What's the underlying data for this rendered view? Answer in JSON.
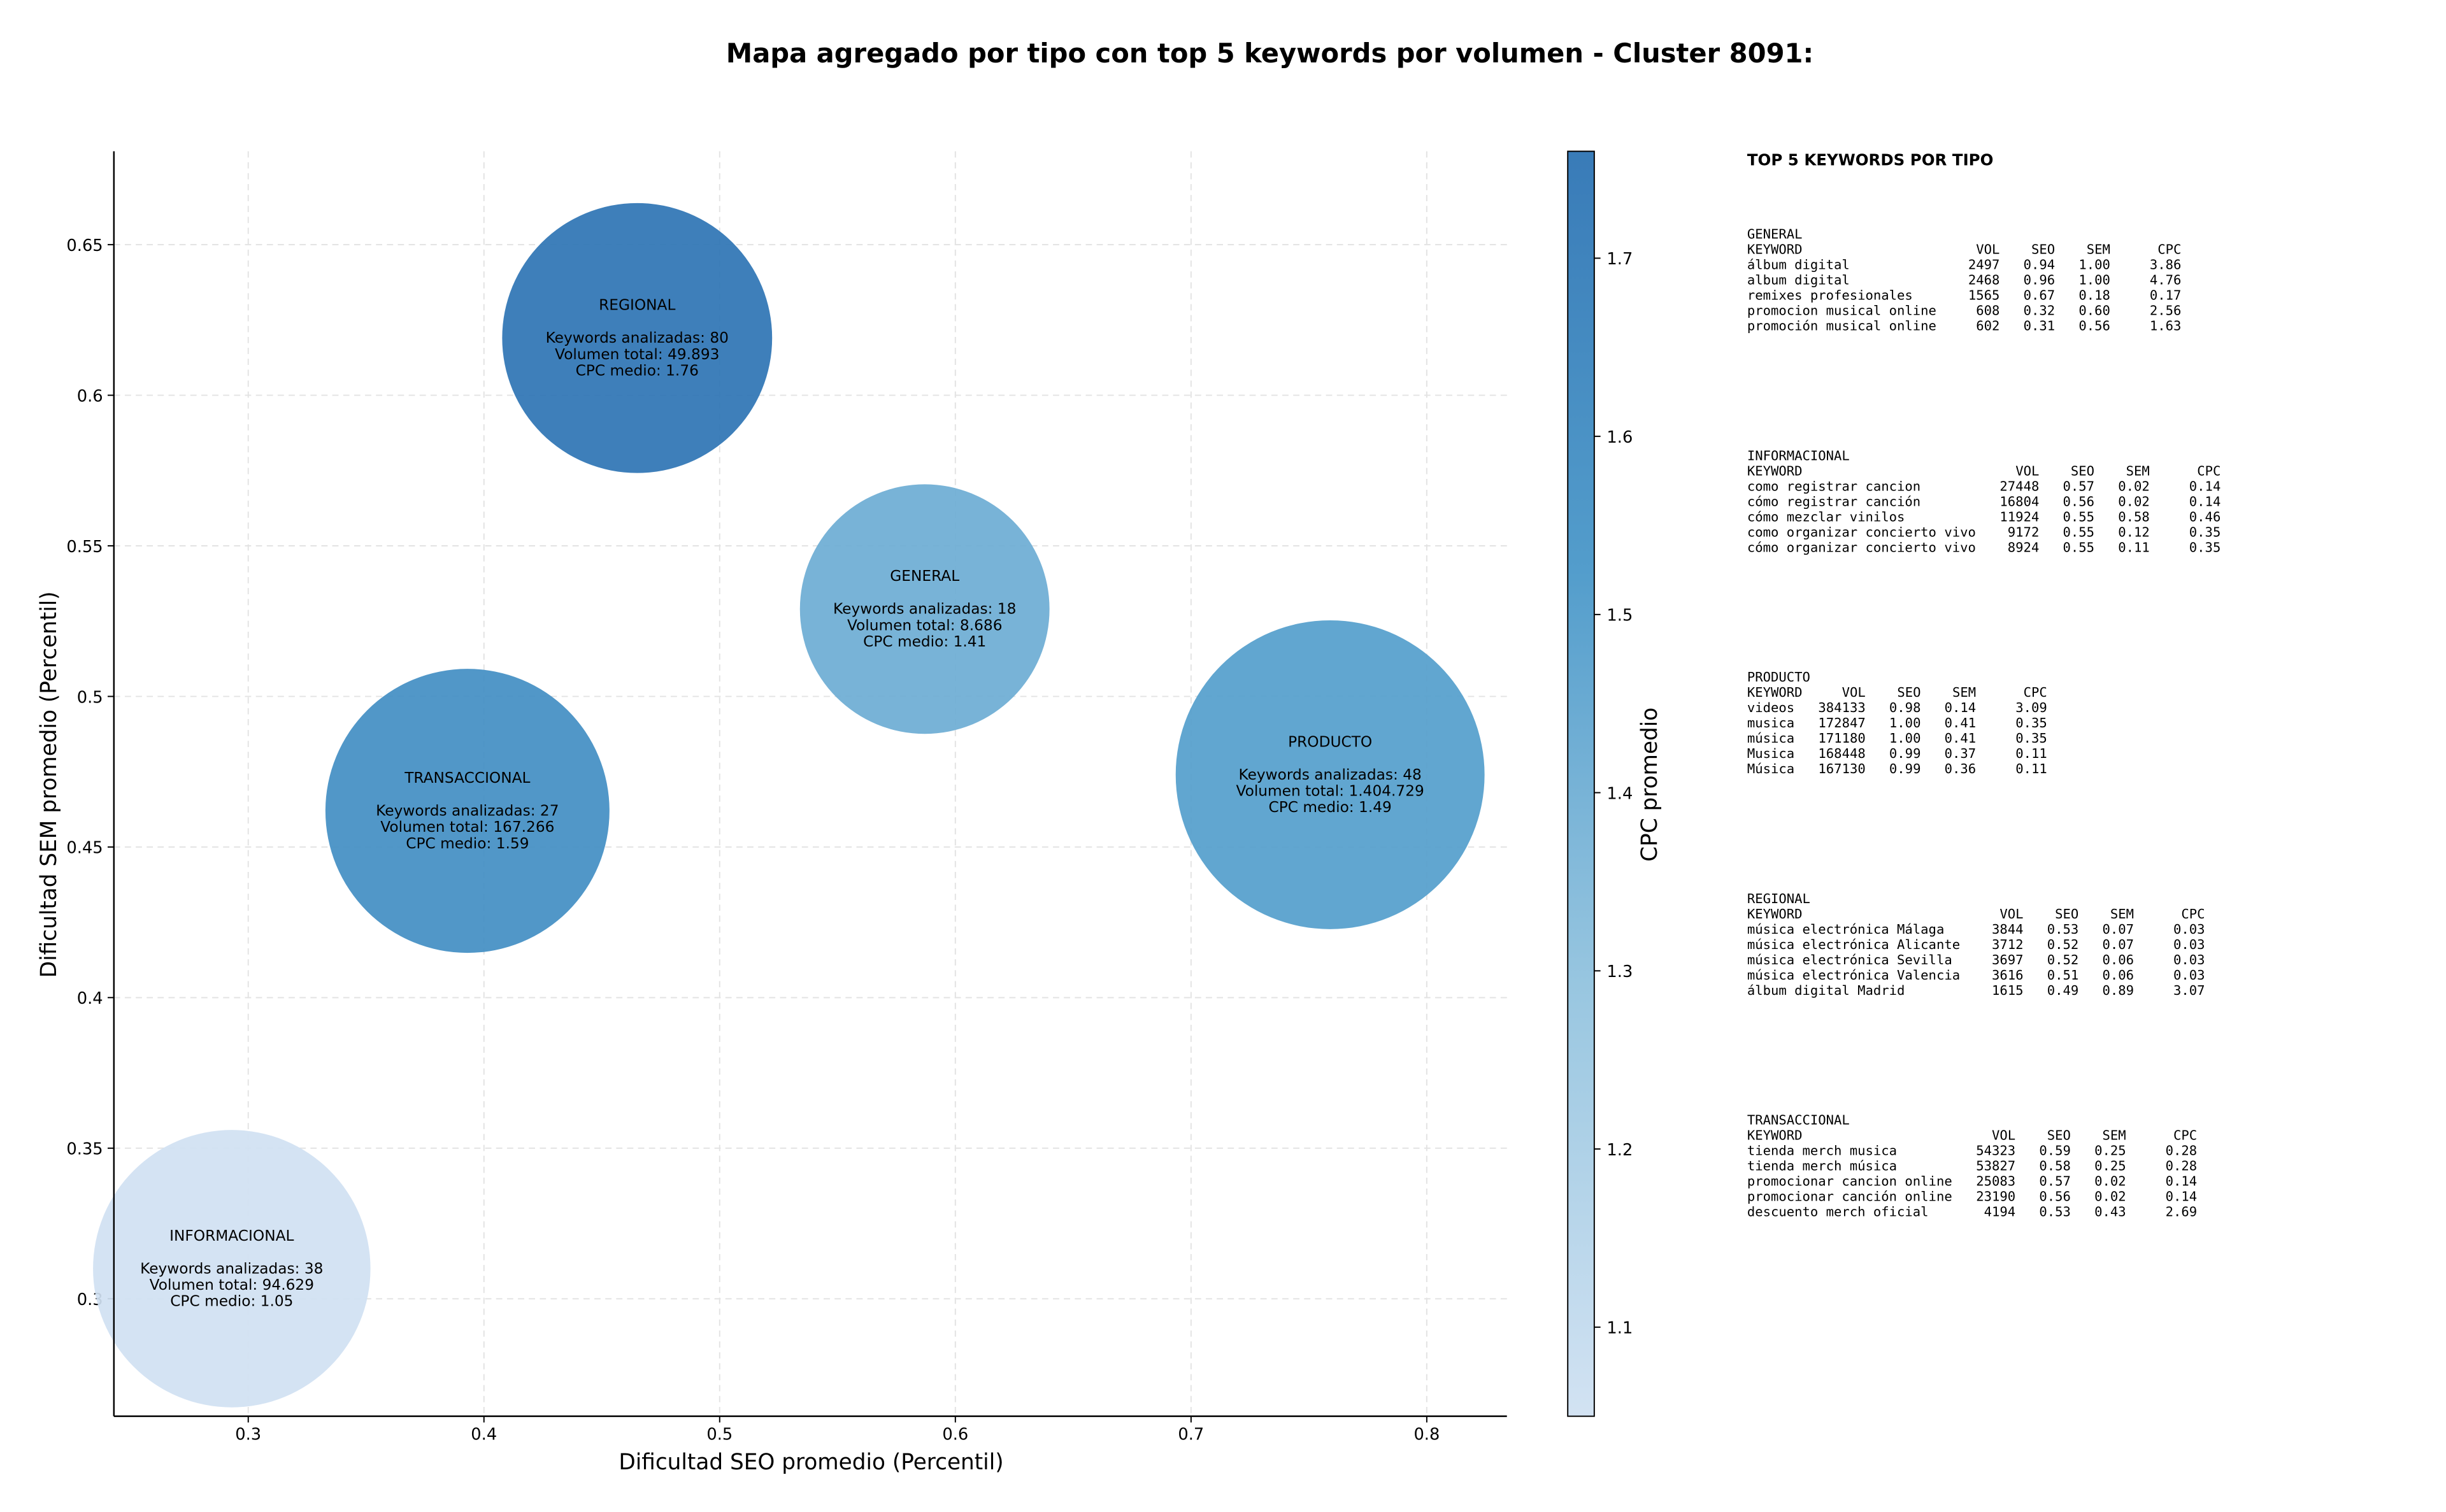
{
  "chart_data": {
    "type": "bubble",
    "title": "Mapa agregado por tipo con top 5 keywords por volumen - Cluster 8091:",
    "x_label": "Dificultad SEO promedio (Percentil)",
    "y_label": "Dificultad SEM promedio (Percentil)",
    "colorbar_label": "CPC promedio",
    "colormap": [
      "#d0e1f2",
      "#94c4df",
      "#4a98c9",
      "#2e74b4"
    ],
    "xlim": [
      0.243,
      0.834
    ],
    "xticks": [
      0.3,
      0.4,
      0.5,
      0.6,
      0.7,
      0.8
    ],
    "ylim": [
      0.261,
      0.681
    ],
    "yticks": [
      0.3,
      0.35,
      0.4,
      0.45,
      0.5,
      0.55,
      0.6,
      0.65
    ],
    "clim": [
      1.05,
      1.76
    ],
    "cticks": [
      1.1,
      1.2,
      1.3,
      1.4,
      1.5,
      1.6,
      1.7
    ],
    "grid": true,
    "points": [
      {
        "name": "REGIONAL",
        "x": 0.465,
        "y": 0.619,
        "volume": 49893,
        "cpc": 1.76,
        "labels": [
          "Keywords analizadas: 80",
          "Volumen total: 49.893",
          "CPC medio: 1.76"
        ]
      },
      {
        "name": "GENERAL",
        "x": 0.587,
        "y": 0.529,
        "volume": 8686,
        "cpc": 1.41,
        "labels": [
          "Keywords analizadas: 18",
          "Volumen total: 8.686",
          "CPC medio: 1.41"
        ]
      },
      {
        "name": "PRODUCTO",
        "x": 0.759,
        "y": 0.474,
        "volume": 1404729,
        "cpc": 1.49,
        "labels": [
          "Keywords analizadas: 48",
          "Volumen total: 1.404.729",
          "CPC medio: 1.49"
        ]
      },
      {
        "name": "TRANSACCIONAL",
        "x": 0.393,
        "y": 0.462,
        "volume": 167266,
        "cpc": 1.59,
        "labels": [
          "Keywords analizadas: 27",
          "Volumen total: 167.266",
          "CPC medio: 1.59"
        ]
      },
      {
        "name": "INFORMACIONAL",
        "x": 0.293,
        "y": 0.31,
        "volume": 94629,
        "cpc": 1.05,
        "labels": [
          "Keywords analizadas: 38",
          "Volumen total: 94.629",
          "CPC medio: 1.05"
        ]
      }
    ]
  },
  "panel": {
    "title": "TOP 5 KEYWORDS POR TIPO",
    "header": [
      "KEYWORD",
      "VOL",
      "SEO",
      "SEM",
      "CPC"
    ],
    "sections": [
      {
        "name": "GENERAL",
        "rows": [
          [
            "álbum digital",
            "2497",
            "0.94",
            "1.00",
            "3.86"
          ],
          [
            "album digital",
            "2468",
            "0.96",
            "1.00",
            "4.76"
          ],
          [
            "remixes profesionales",
            "1565",
            "0.67",
            "0.18",
            "0.17"
          ],
          [
            "promocion musical online",
            "608",
            "0.32",
            "0.60",
            "2.56"
          ],
          [
            "promoción musical online",
            "602",
            "0.31",
            "0.56",
            "1.63"
          ]
        ]
      },
      {
        "name": "INFORMACIONAL",
        "rows": [
          [
            "como registrar cancion",
            "27448",
            "0.57",
            "0.02",
            "0.14"
          ],
          [
            "cómo registrar canción",
            "16804",
            "0.56",
            "0.02",
            "0.14"
          ],
          [
            "cómo mezclar vinilos",
            "11924",
            "0.55",
            "0.58",
            "0.46"
          ],
          [
            "como organizar concierto vivo",
            "9172",
            "0.55",
            "0.12",
            "0.35"
          ],
          [
            "cómo organizar concierto vivo",
            "8924",
            "0.55",
            "0.11",
            "0.35"
          ]
        ]
      },
      {
        "name": "PRODUCTO",
        "rows": [
          [
            "videos",
            "384133",
            "0.98",
            "0.14",
            "3.09"
          ],
          [
            "musica",
            "172847",
            "1.00",
            "0.41",
            "0.35"
          ],
          [
            "música",
            "171180",
            "1.00",
            "0.41",
            "0.35"
          ],
          [
            "Musica",
            "168448",
            "0.99",
            "0.37",
            "0.11"
          ],
          [
            "Música",
            "167130",
            "0.99",
            "0.36",
            "0.11"
          ]
        ]
      },
      {
        "name": "REGIONAL",
        "rows": [
          [
            "música electrónica Málaga",
            "3844",
            "0.53",
            "0.07",
            "0.03"
          ],
          [
            "música electrónica Alicante",
            "3712",
            "0.52",
            "0.07",
            "0.03"
          ],
          [
            "música electrónica Sevilla",
            "3697",
            "0.52",
            "0.06",
            "0.03"
          ],
          [
            "música electrónica Valencia",
            "3616",
            "0.51",
            "0.06",
            "0.03"
          ],
          [
            "álbum digital Madrid",
            "1615",
            "0.49",
            "0.89",
            "3.07"
          ]
        ]
      },
      {
        "name": "TRANSACCIONAL",
        "rows": [
          [
            "tienda merch musica",
            "54323",
            "0.59",
            "0.25",
            "0.28"
          ],
          [
            "tienda merch música",
            "53827",
            "0.58",
            "0.25",
            "0.28"
          ],
          [
            "promocionar cancion online",
            "25083",
            "0.57",
            "0.02",
            "0.14"
          ],
          [
            "promocionar canción online",
            "23190",
            "0.56",
            "0.02",
            "0.14"
          ],
          [
            "descuento merch oficial",
            "4194",
            "0.53",
            "0.43",
            "2.69"
          ]
        ]
      }
    ]
  }
}
